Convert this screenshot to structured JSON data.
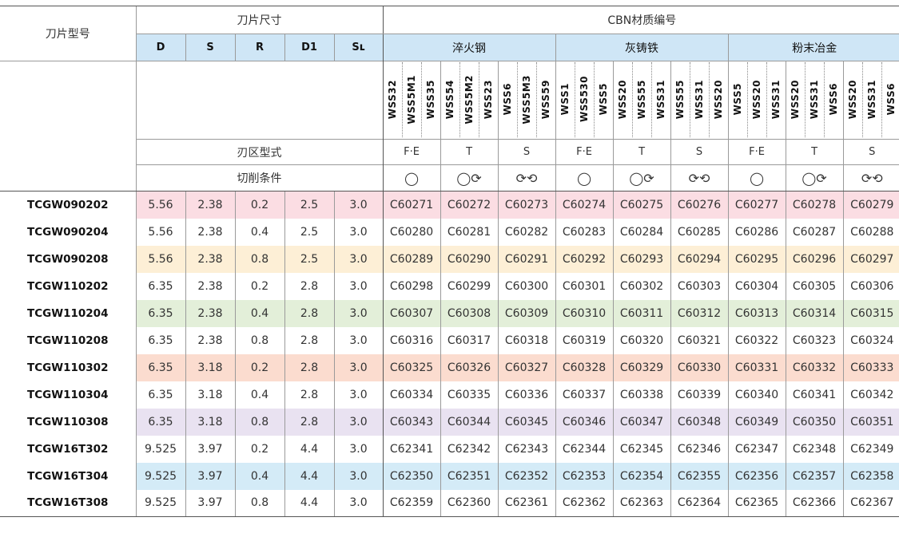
{
  "header": {
    "model_label": "刀片型号",
    "dim_label": "刀片尺寸",
    "cbn_label": "CBN材质编号",
    "dims": [
      "D",
      "S",
      "R",
      "D1",
      "Sʟ"
    ],
    "groups": [
      "淬火钢",
      "灰铸铁",
      "粉末冶金"
    ]
  },
  "grades": [
    [
      "WSS32",
      "WSS5M1",
      "WSS35"
    ],
    [
      "WSS54",
      "WSS5M2",
      "WSS23"
    ],
    [
      "WSS6",
      "WSS5M3",
      "WSS59"
    ],
    [
      "WSS1",
      "WSS530",
      "WSS5"
    ],
    [
      "WSS20",
      "WSS55",
      "WSS31"
    ],
    [
      "WSS55",
      "WSS31",
      "WSS20"
    ],
    [
      "WSS5",
      "WSS20",
      "WSS31"
    ],
    [
      "WSS20",
      "WSS31",
      "WSS6"
    ],
    [
      "WSS20",
      "WSS31",
      "WSS6"
    ]
  ],
  "blade_type": {
    "label": "刃区型式",
    "values": [
      "F·E",
      "T",
      "S",
      "F·E",
      "T",
      "S",
      "F·E",
      "T",
      "S"
    ]
  },
  "cutting": {
    "label": "切削条件",
    "symbols": [
      "◯",
      "◯⟳",
      "⟳⟲",
      "◯",
      "◯⟳",
      "⟳⟲",
      "◯",
      "◯⟳",
      "⟳⟲"
    ],
    "symbol_icons": [
      "circle-icon",
      "circle-cycle-icon",
      "double-cycle-icon"
    ]
  },
  "rows": [
    {
      "model": "TCGW090202",
      "D": "5.56",
      "S": "2.38",
      "R": "0.2",
      "D1": "2.5",
      "SL": "3.0",
      "codes": [
        "C60271",
        "C60272",
        "C60273",
        "C60274",
        "C60275",
        "C60276",
        "C60277",
        "C60278",
        "C60279"
      ],
      "bg": "#fbdde3"
    },
    {
      "model": "TCGW090204",
      "D": "5.56",
      "S": "2.38",
      "R": "0.4",
      "D1": "2.5",
      "SL": "3.0",
      "codes": [
        "C60280",
        "C60281",
        "C60282",
        "C60283",
        "C60284",
        "C60285",
        "C60286",
        "C60287",
        "C60288"
      ],
      "bg": ""
    },
    {
      "model": "TCGW090208",
      "D": "5.56",
      "S": "2.38",
      "R": "0.8",
      "D1": "2.5",
      "SL": "3.0",
      "codes": [
        "C60289",
        "C60290",
        "C60291",
        "C60292",
        "C60293",
        "C60294",
        "C60295",
        "C60296",
        "C60297"
      ],
      "bg": "#fdefd6"
    },
    {
      "model": "TCGW110202",
      "D": "6.35",
      "S": "2.38",
      "R": "0.2",
      "D1": "2.8",
      "SL": "3.0",
      "codes": [
        "C60298",
        "C60299",
        "C60300",
        "C60301",
        "C60302",
        "C60303",
        "C60304",
        "C60305",
        "C60306"
      ],
      "bg": ""
    },
    {
      "model": "TCGW110204",
      "D": "6.35",
      "S": "2.38",
      "R": "0.4",
      "D1": "2.8",
      "SL": "3.0",
      "codes": [
        "C60307",
        "C60308",
        "C60309",
        "C60310",
        "C60311",
        "C60312",
        "C60313",
        "C60314",
        "C60315"
      ],
      "bg": "#e3efd9"
    },
    {
      "model": "TCGW110208",
      "D": "6.35",
      "S": "2.38",
      "R": "0.8",
      "D1": "2.8",
      "SL": "3.0",
      "codes": [
        "C60316",
        "C60317",
        "C60318",
        "C60319",
        "C60320",
        "C60321",
        "C60322",
        "C60323",
        "C60324"
      ],
      "bg": ""
    },
    {
      "model": "TCGW110302",
      "D": "6.35",
      "S": "3.18",
      "R": "0.2",
      "D1": "2.8",
      "SL": "3.0",
      "codes": [
        "C60325",
        "C60326",
        "C60327",
        "C60328",
        "C60329",
        "C60330",
        "C60331",
        "C60332",
        "C60333"
      ],
      "bg": "#fbdccf"
    },
    {
      "model": "TCGW110304",
      "D": "6.35",
      "S": "3.18",
      "R": "0.4",
      "D1": "2.8",
      "SL": "3.0",
      "codes": [
        "C60334",
        "C60335",
        "C60336",
        "C60337",
        "C60338",
        "C60339",
        "C60340",
        "C60341",
        "C60342"
      ],
      "bg": ""
    },
    {
      "model": "TCGW110308",
      "D": "6.35",
      "S": "3.18",
      "R": "0.8",
      "D1": "2.8",
      "SL": "3.0",
      "codes": [
        "C60343",
        "C60344",
        "C60345",
        "C60346",
        "C60347",
        "C60348",
        "C60349",
        "C60350",
        "C60351"
      ],
      "bg": "#e9e2f1"
    },
    {
      "model": "TCGW16T302",
      "D": "9.525",
      "S": "3.97",
      "R": "0.2",
      "D1": "4.4",
      "SL": "3.0",
      "codes": [
        "C62341",
        "C62342",
        "C62343",
        "C62344",
        "C62345",
        "C62346",
        "C62347",
        "C62348",
        "C62349"
      ],
      "bg": ""
    },
    {
      "model": "TCGW16T304",
      "D": "9.525",
      "S": "3.97",
      "R": "0.4",
      "D1": "4.4",
      "SL": "3.0",
      "codes": [
        "C62350",
        "C62351",
        "C62352",
        "C62353",
        "C62354",
        "C62355",
        "C62356",
        "C62357",
        "C62358"
      ],
      "bg": "#d4ebf7"
    },
    {
      "model": "TCGW16T308",
      "D": "9.525",
      "S": "3.97",
      "R": "0.8",
      "D1": "4.4",
      "SL": "3.0",
      "codes": [
        "C62359",
        "C62360",
        "C62361",
        "C62362",
        "C62363",
        "C62364",
        "C62365",
        "C62366",
        "C62367"
      ],
      "bg": ""
    }
  ],
  "colors": {
    "header_blue": "#cfe6f6"
  }
}
